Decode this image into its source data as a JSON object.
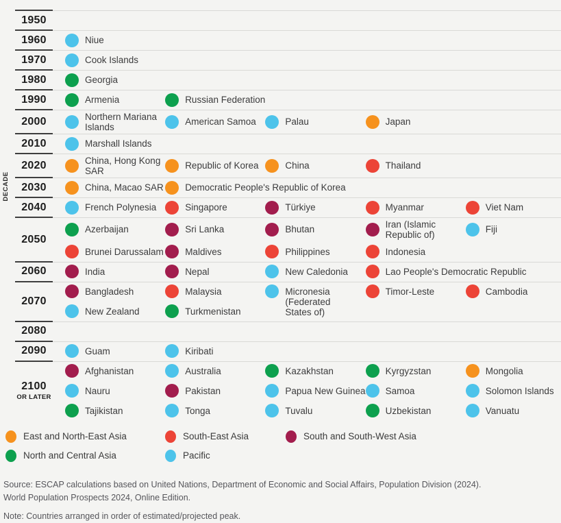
{
  "chart_data": {
    "type": "table",
    "title": "Countries by decade of estimated/projected population peak",
    "ylabel": "DECADE",
    "legend_position": "bottom",
    "regions": {
      "enea": {
        "label": "East and North-East Asia",
        "color": "#F6921E"
      },
      "sea": {
        "label": "South-East Asia",
        "color": "#EC4437"
      },
      "sswa": {
        "label": "South and South-West Asia",
        "color": "#A21D4D"
      },
      "nca": {
        "label": "North and Central Asia",
        "color": "#0DA04E"
      },
      "pacific": {
        "label": "Pacific",
        "color": "#4DC3EA"
      }
    },
    "legend_rows": [
      [
        "enea",
        "sea",
        "sswa"
      ],
      [
        "nca",
        "pacific"
      ]
    ],
    "rows": [
      {
        "decade": "1950",
        "suffix": "",
        "lines": [
          []
        ]
      },
      {
        "decade": "1960",
        "suffix": "",
        "lines": [
          [
            {
              "label": "Niue",
              "region": "pacific"
            }
          ]
        ]
      },
      {
        "decade": "1970",
        "suffix": "",
        "lines": [
          [
            {
              "label": "Cook Islands",
              "region": "pacific"
            }
          ]
        ]
      },
      {
        "decade": "1980",
        "suffix": "",
        "lines": [
          [
            {
              "label": "Georgia",
              "region": "nca"
            }
          ]
        ]
      },
      {
        "decade": "1990",
        "suffix": "",
        "lines": [
          [
            {
              "label": "Armenia",
              "region": "nca"
            },
            {
              "label": "Russian Federation",
              "region": "nca"
            }
          ]
        ]
      },
      {
        "decade": "2000",
        "suffix": "",
        "lines": [
          [
            {
              "label": "Northern Mariana\nIslands",
              "region": "pacific"
            },
            {
              "label": "American Samoa",
              "region": "pacific"
            },
            {
              "label": "Palau",
              "region": "pacific"
            },
            {
              "label": "Japan",
              "region": "enea"
            }
          ]
        ]
      },
      {
        "decade": "2010",
        "suffix": "",
        "lines": [
          [
            {
              "label": "Marshall Islands",
              "region": "pacific"
            }
          ]
        ]
      },
      {
        "decade": "2020",
        "suffix": "",
        "lines": [
          [
            {
              "label": "China, Hong Kong\nSAR",
              "region": "enea"
            },
            {
              "label": "Republic of Korea",
              "region": "enea"
            },
            {
              "label": "China",
              "region": "enea"
            },
            {
              "label": "Thailand",
              "region": "sea"
            }
          ]
        ]
      },
      {
        "decade": "2030",
        "suffix": "",
        "lines": [
          [
            {
              "label": "China, Macao SAR",
              "region": "enea"
            },
            {
              "label": "Democratic People's Republic of Korea",
              "region": "enea"
            }
          ]
        ]
      },
      {
        "decade": "2040",
        "suffix": "",
        "lines": [
          [
            {
              "label": "French Polynesia",
              "region": "pacific"
            },
            {
              "label": "Singapore",
              "region": "sea"
            },
            {
              "label": "Türkiye",
              "region": "sswa"
            },
            {
              "label": "Myanmar",
              "region": "sea"
            },
            {
              "label": "Viet Nam",
              "region": "sea"
            }
          ]
        ]
      },
      {
        "decade": "2050",
        "suffix": "",
        "lines": [
          [
            {
              "label": "Azerbaijan",
              "region": "nca"
            },
            {
              "label": "Sri Lanka",
              "region": "sswa"
            },
            {
              "label": "Bhutan",
              "region": "sswa"
            },
            {
              "label": "Iran (Islamic\nRepublic of)",
              "region": "sswa"
            },
            {
              "label": "Fiji",
              "region": "pacific"
            }
          ],
          [
            {
              "label": "Brunei Darussalam",
              "region": "sea"
            },
            {
              "label": "Maldives",
              "region": "sswa"
            },
            {
              "label": "Philippines",
              "region": "sea"
            },
            {
              "label": "Indonesia",
              "region": "sea"
            }
          ]
        ]
      },
      {
        "decade": "2060",
        "suffix": "",
        "lines": [
          [
            {
              "label": "India",
              "region": "sswa"
            },
            {
              "label": "Nepal",
              "region": "sswa"
            },
            {
              "label": "New Caledonia",
              "region": "pacific"
            },
            {
              "label": "Lao People's Democratic Republic",
              "region": "sea"
            }
          ]
        ]
      },
      {
        "decade": "2070",
        "suffix": "",
        "lines": [
          [
            {
              "label": "Bangladesh",
              "region": "sswa"
            },
            {
              "label": "Malaysia",
              "region": "sea"
            },
            {
              "label": "Micronesia\n(Federated\nStates of)",
              "region": "pacific"
            },
            {
              "label": "Timor-Leste",
              "region": "sea"
            },
            {
              "label": "Cambodia",
              "region": "sea"
            }
          ],
          [
            {
              "label": "New Zealand",
              "region": "pacific"
            },
            {
              "label": "Turkmenistan",
              "region": "nca"
            }
          ]
        ]
      },
      {
        "decade": "2080",
        "suffix": "",
        "lines": [
          []
        ]
      },
      {
        "decade": "2090",
        "suffix": "",
        "lines": [
          [
            {
              "label": "Guam",
              "region": "pacific"
            },
            {
              "label": "Kiribati",
              "region": "pacific"
            }
          ]
        ]
      },
      {
        "decade": "2100",
        "suffix": "OR LATER",
        "lines": [
          [
            {
              "label": "Afghanistan",
              "region": "sswa"
            },
            {
              "label": "Australia",
              "region": "pacific"
            },
            {
              "label": "Kazakhstan",
              "region": "nca"
            },
            {
              "label": "Kyrgyzstan",
              "region": "nca"
            },
            {
              "label": "Mongolia",
              "region": "enea"
            }
          ],
          [
            {
              "label": "Nauru",
              "region": "pacific"
            },
            {
              "label": "Pakistan",
              "region": "sswa"
            },
            {
              "label": "Papua New Guinea",
              "region": "pacific"
            },
            {
              "label": "Samoa",
              "region": "pacific"
            },
            {
              "label": "Solomon Islands",
              "region": "pacific"
            }
          ],
          [
            {
              "label": "Tajikistan",
              "region": "nca"
            },
            {
              "label": "Tonga",
              "region": "pacific"
            },
            {
              "label": "Tuvalu",
              "region": "pacific"
            },
            {
              "label": "Uzbekistan",
              "region": "nca"
            },
            {
              "label": "Vanuatu",
              "region": "pacific"
            }
          ]
        ]
      }
    ]
  },
  "footer": {
    "source": "Source: ESCAP calculations based on United Nations, Department of Economic and Social Affairs, Population Division (2024).\nWorld Population Prospects 2024, Online Edition.",
    "note": "Note: Countries arranged in order of estimated/projected peak."
  }
}
